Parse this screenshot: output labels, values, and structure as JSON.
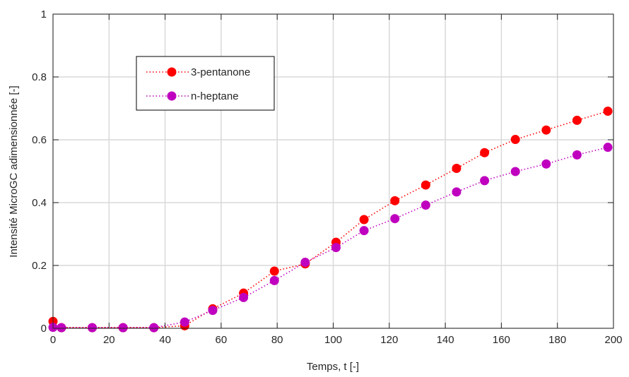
{
  "chart_data": {
    "type": "line",
    "title": "",
    "xlabel": "Temps, t [-]",
    "ylabel": "Intensité MicroGC adimensionnée [-]",
    "xlim": [
      0,
      200
    ],
    "ylim": [
      0,
      1
    ],
    "xticks": [
      "0",
      "20",
      "40",
      "60",
      "80",
      "100",
      "120",
      "140",
      "160",
      "180",
      "200"
    ],
    "yticks": [
      "0",
      "0.2",
      "0.4",
      "0.6",
      "0.8",
      "1"
    ],
    "grid": true,
    "legend_position": "top-left (inside axes)",
    "series": [
      {
        "name": "3-pentanone",
        "color": "#ff0000",
        "line_style": "dotted",
        "marker": "filled-circle",
        "x": [
          0,
          3,
          14,
          25,
          36,
          47,
          57,
          68,
          79,
          90,
          101,
          111,
          122,
          133,
          144,
          154,
          165,
          176,
          187,
          198
        ],
        "y": [
          0.022,
          0.002,
          0.002,
          0.002,
          0.002,
          0.008,
          0.062,
          0.112,
          0.182,
          0.205,
          0.274,
          0.346,
          0.406,
          0.456,
          0.509,
          0.559,
          0.601,
          0.631,
          0.662,
          0.691
        ]
      },
      {
        "name": "n-heptane",
        "color": "#bf00bf",
        "line_style": "dotted",
        "marker": "filled-circle",
        "x": [
          0,
          3,
          14,
          25,
          36,
          47,
          57,
          68,
          79,
          90,
          101,
          111,
          122,
          133,
          144,
          154,
          165,
          176,
          187,
          198
        ],
        "y": [
          0.003,
          0.002,
          0.002,
          0.002,
          0.002,
          0.02,
          0.057,
          0.098,
          0.152,
          0.21,
          0.257,
          0.311,
          0.349,
          0.392,
          0.434,
          0.47,
          0.499,
          0.523,
          0.552,
          0.576
        ]
      }
    ]
  }
}
